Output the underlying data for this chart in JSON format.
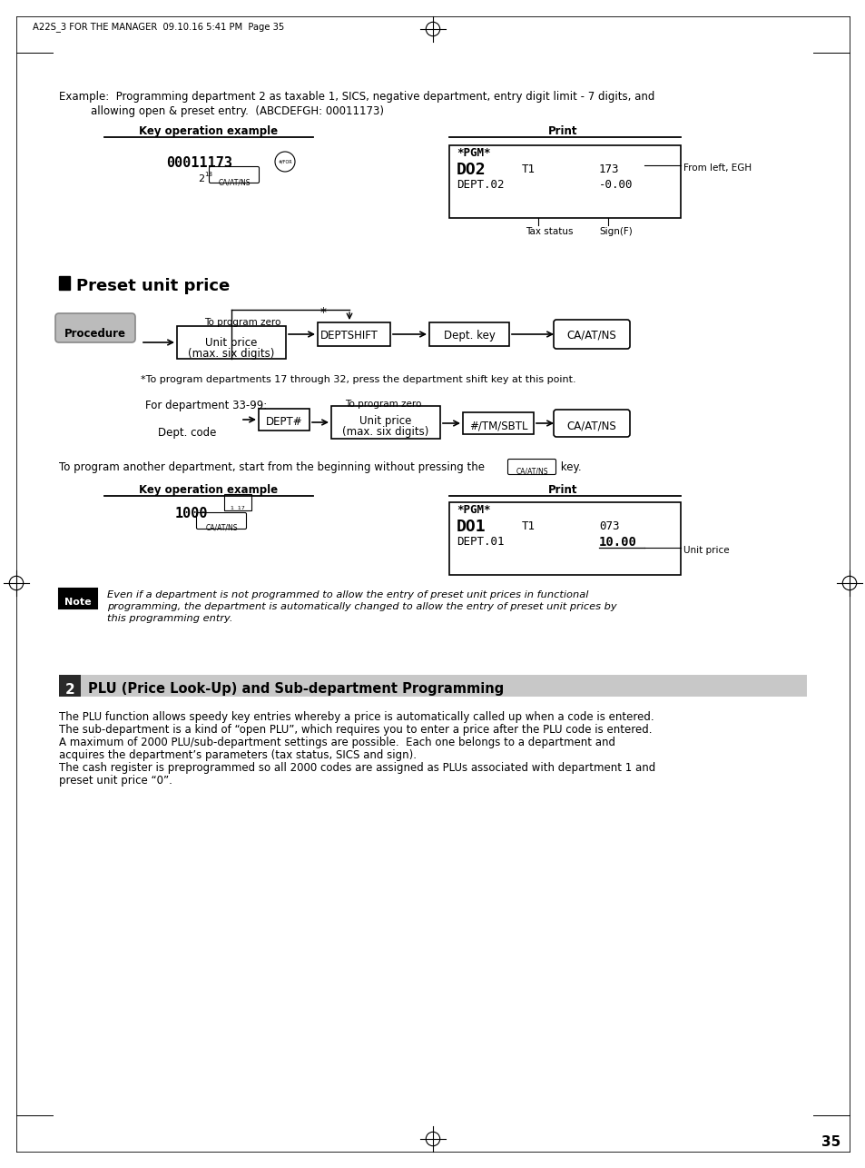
{
  "page_header": "A22S_3 FOR THE MANAGER  09.10.16 5:41 PM  Page 35",
  "page_number": "35",
  "bg_color": "#ffffff",
  "section2_title": "PLU (Price Look-Up) and Sub-department Programming",
  "note_text_line1": "Even if a department is not programmed to allow the entry of preset unit prices in functional",
  "note_text_line2": "programming, the department is automatically changed to allow the entry of preset unit prices by",
  "note_text_line3": "this programming entry.",
  "body_line1": "The PLU function allows speedy key entries whereby a price is automatically called up when a code is entered.",
  "body_line2": "The sub-department is a kind of “open PLU”, which requires you to enter a price after the PLU code is entered.",
  "body_line3": "A maximum of 2000 PLU/sub-department settings are possible.  Each one belongs to a department and",
  "body_line4": "acquires the department’s parameters (tax status, SICS and sign).",
  "body_line5": "The cash register is preprogrammed so all 2000 codes are assigned as PLUs associated with department 1 and",
  "body_line6": "preset unit price “0”."
}
